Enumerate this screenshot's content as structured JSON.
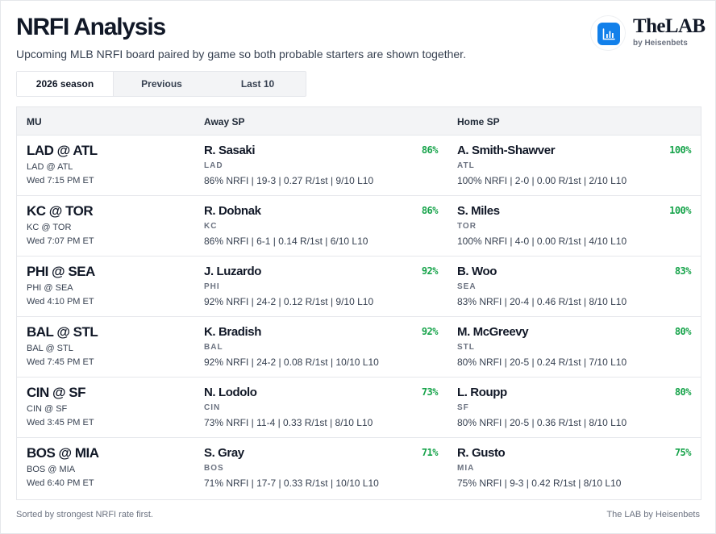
{
  "header": {
    "title": "NRFI Analysis",
    "subtitle": "Upcoming MLB NRFI board paired by game so both probable starters are shown together."
  },
  "brand": {
    "name": "TheLAB",
    "by": "by Heisenbets",
    "icon": "bar-chart-icon",
    "accent_color": "#1280ea"
  },
  "tabs": [
    {
      "label": "2026 season",
      "active": true
    },
    {
      "label": "Previous",
      "active": false
    },
    {
      "label": "Last 10",
      "active": false
    }
  ],
  "table": {
    "columns": {
      "mu": "MU",
      "away": "Away SP",
      "home": "Home SP"
    },
    "pct_color": "#16a34a",
    "rows": [
      {
        "matchup": "LAD @ ATL",
        "matchup_sub": "LAD @ ATL",
        "time": "Wed 7:15 PM ET",
        "away": {
          "name": "R. Sasaki",
          "team": "LAD",
          "pct": "86%",
          "stats": "86% NRFI | 19-3 | 0.27 R/1st | 9/10 L10"
        },
        "home": {
          "name": "A. Smith-Shawver",
          "team": "ATL",
          "pct": "100%",
          "stats": "100% NRFI | 2-0 | 0.00 R/1st | 2/10 L10"
        }
      },
      {
        "matchup": "KC @ TOR",
        "matchup_sub": "KC @ TOR",
        "time": "Wed 7:07 PM ET",
        "away": {
          "name": "R. Dobnak",
          "team": "KC",
          "pct": "86%",
          "stats": "86% NRFI | 6-1 | 0.14 R/1st | 6/10 L10"
        },
        "home": {
          "name": "S. Miles",
          "team": "TOR",
          "pct": "100%",
          "stats": "100% NRFI | 4-0 | 0.00 R/1st | 4/10 L10"
        }
      },
      {
        "matchup": "PHI @ SEA",
        "matchup_sub": "PHI @ SEA",
        "time": "Wed 4:10 PM ET",
        "away": {
          "name": "J. Luzardo",
          "team": "PHI",
          "pct": "92%",
          "stats": "92% NRFI | 24-2 | 0.12 R/1st | 9/10 L10"
        },
        "home": {
          "name": "B. Woo",
          "team": "SEA",
          "pct": "83%",
          "stats": "83% NRFI | 20-4 | 0.46 R/1st | 8/10 L10"
        }
      },
      {
        "matchup": "BAL @ STL",
        "matchup_sub": "BAL @ STL",
        "time": "Wed 7:45 PM ET",
        "away": {
          "name": "K. Bradish",
          "team": "BAL",
          "pct": "92%",
          "stats": "92% NRFI | 24-2 | 0.08 R/1st | 10/10 L10"
        },
        "home": {
          "name": "M. McGreevy",
          "team": "STL",
          "pct": "80%",
          "stats": "80% NRFI | 20-5 | 0.24 R/1st | 7/10 L10"
        }
      },
      {
        "matchup": "CIN @ SF",
        "matchup_sub": "CIN @ SF",
        "time": "Wed 3:45 PM ET",
        "away": {
          "name": "N. Lodolo",
          "team": "CIN",
          "pct": "73%",
          "stats": "73% NRFI | 11-4 | 0.33 R/1st | 8/10 L10"
        },
        "home": {
          "name": "L. Roupp",
          "team": "SF",
          "pct": "80%",
          "stats": "80% NRFI | 20-5 | 0.36 R/1st | 8/10 L10"
        }
      },
      {
        "matchup": "BOS @ MIA",
        "matchup_sub": "BOS @ MIA",
        "time": "Wed 6:40 PM ET",
        "away": {
          "name": "S. Gray",
          "team": "BOS",
          "pct": "71%",
          "stats": "71% NRFI | 17-7 | 0.33 R/1st | 10/10 L10"
        },
        "home": {
          "name": "R. Gusto",
          "team": "MIA",
          "pct": "75%",
          "stats": "75% NRFI | 9-3 | 0.42 R/1st | 8/10 L10"
        }
      }
    ]
  },
  "footer": {
    "note": "Sorted by strongest NRFI rate first.",
    "credit": "The LAB by Heisenbets"
  }
}
